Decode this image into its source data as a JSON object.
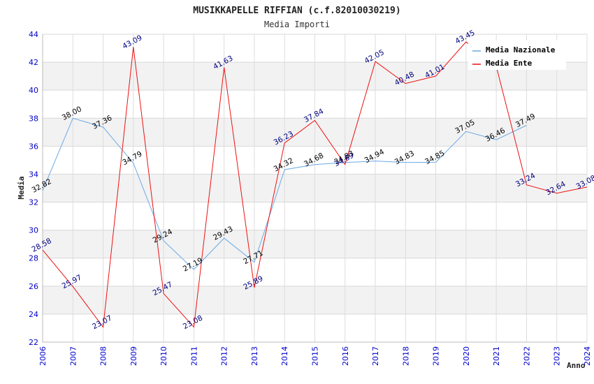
{
  "chart_data": {
    "type": "line",
    "title": "MUSIKKAPELLE RIFFIAN (c.f.82010030219)",
    "subtitle": "Media Importi",
    "xlabel": "Anno",
    "ylabel": "Media",
    "ylim": [
      22,
      44
    ],
    "yticks": [
      "22",
      "24",
      "26",
      "28",
      "30",
      "32",
      "34",
      "36",
      "38",
      "40",
      "42",
      "44"
    ],
    "categories": [
      "2006",
      "2007",
      "2008",
      "2009",
      "2010",
      "2011",
      "2012",
      "2013",
      "2014",
      "2015",
      "2016",
      "2017",
      "2018",
      "2019",
      "2020",
      "2021",
      "2022",
      "2023",
      "2024"
    ],
    "legend_position": "top-right",
    "series": [
      {
        "name": "Media Nazionale",
        "color": "#6aa9e6",
        "values": [
          32.82,
          38.0,
          37.36,
          34.79,
          29.24,
          27.19,
          29.43,
          27.71,
          34.32,
          34.68,
          34.83,
          34.94,
          34.83,
          34.85,
          37.05,
          36.46,
          37.49,
          null,
          null
        ],
        "labels": [
          "32.82",
          "38.00",
          "37.36",
          "34.79",
          "29.24",
          "27.19",
          "29.43",
          "27.71",
          "34.32",
          "34.68",
          "34.83",
          "34.94",
          "34.83",
          "34.85",
          "37.05",
          "36.46",
          "37.49",
          null,
          null
        ]
      },
      {
        "name": "Media Ente",
        "color": "#ee1111",
        "values": [
          28.58,
          25.97,
          23.07,
          43.09,
          25.47,
          23.08,
          41.63,
          25.89,
          36.23,
          37.84,
          34.69,
          42.05,
          40.48,
          41.01,
          43.45,
          41.7,
          33.24,
          32.64,
          33.08
        ],
        "labels": [
          "28.58",
          "25.97",
          "23.07",
          "43.09",
          "25.47",
          "23.08",
          "41.63",
          "25.89",
          "36.23",
          "37.84",
          "34.69",
          "42.05",
          "40.48",
          "41.01",
          "43.45",
          null,
          "33.24",
          "32.64",
          "33.08"
        ]
      }
    ]
  }
}
